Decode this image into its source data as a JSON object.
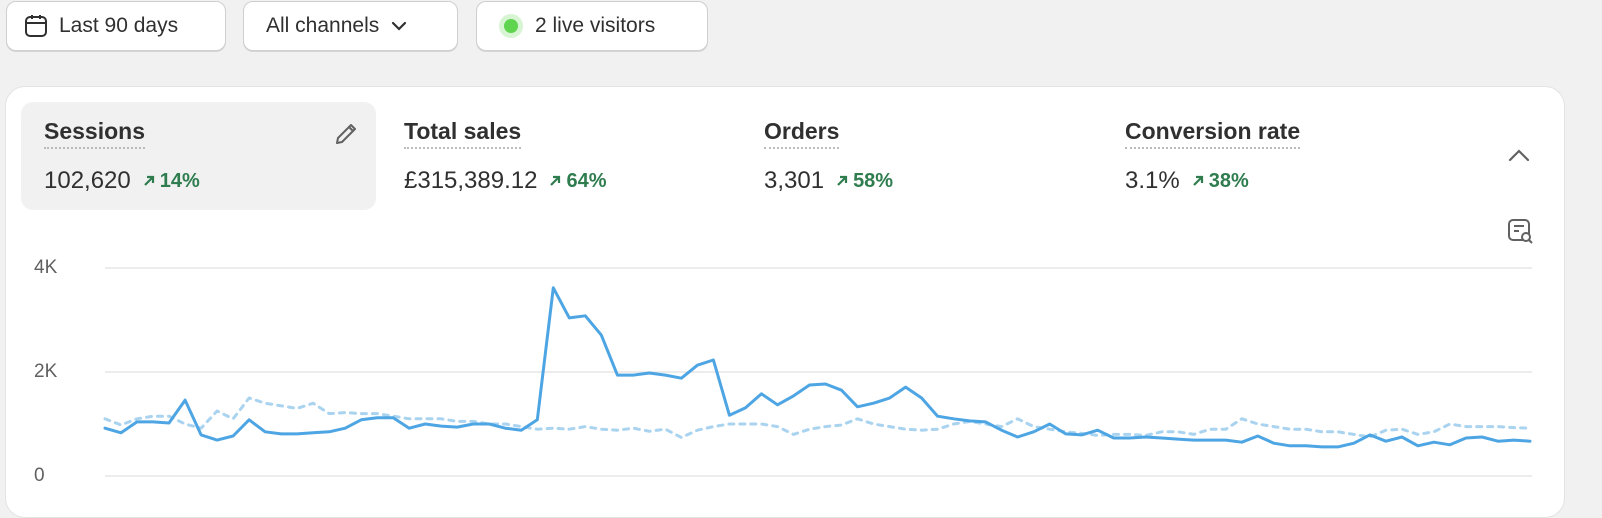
{
  "filters": [
    "Last 90 days",
    "All channels",
    "2 live visitors"
  ],
  "metrics": [
    {
      "label": "Sessions",
      "value": "102,620",
      "change": "14%"
    },
    {
      "label": "Total sales",
      "value": "£315,389.12",
      "change": "64%"
    },
    {
      "label": "Orders",
      "value": "3,301",
      "change": "58%"
    },
    {
      "label": "Conversion rate",
      "value": "3.1%",
      "change": "38%"
    }
  ],
  "chart_data": {
    "type": "line",
    "ylim": [
      0,
      4000
    ],
    "yticks": [
      {
        "value": 0,
        "label": "0"
      },
      {
        "value": 2000,
        "label": "2K"
      },
      {
        "value": 4000,
        "label": "4K"
      }
    ],
    "grid": true,
    "series": [
      {
        "color": "#4ea5e3",
        "dashed": false,
        "values": [
          920,
          830,
          1040,
          1040,
          1020,
          1460,
          790,
          690,
          770,
          1080,
          850,
          810,
          810,
          830,
          850,
          920,
          1080,
          1120,
          1120,
          920,
          1000,
          960,
          940,
          1000,
          1000,
          920,
          880,
          1080,
          3620,
          3040,
          3080,
          2710,
          1940,
          1940,
          1980,
          1940,
          1880,
          2130,
          2230,
          1170,
          1310,
          1580,
          1370,
          1540,
          1750,
          1770,
          1650,
          1330,
          1400,
          1500,
          1710,
          1500,
          1150,
          1100,
          1060,
          1040,
          880,
          750,
          850,
          1000,
          810,
          790,
          880,
          730,
          730,
          750,
          730,
          710,
          690,
          690,
          690,
          650,
          770,
          630,
          580,
          580,
          560,
          560,
          630,
          790,
          670,
          750,
          580,
          650,
          600,
          730,
          750,
          670,
          690,
          670
        ]
      },
      {
        "color": "#a9d3ef",
        "dashed": true,
        "values": [
          1100,
          980,
          1100,
          1150,
          1150,
          1000,
          920,
          1250,
          1100,
          1500,
          1400,
          1350,
          1300,
          1400,
          1200,
          1220,
          1200,
          1200,
          1150,
          1100,
          1100,
          1100,
          1050,
          1050,
          1000,
          1000,
          950,
          900,
          920,
          900,
          950,
          900,
          880,
          920,
          860,
          900,
          740,
          880,
          950,
          1000,
          1000,
          1000,
          950,
          800,
          900,
          950,
          980,
          1100,
          1000,
          950,
          900,
          880,
          900,
          1000,
          1050,
          1000,
          950,
          1100,
          950,
          900,
          850,
          820,
          780,
          800,
          800,
          780,
          850,
          850,
          800,
          900,
          900,
          1100,
          1000,
          950,
          900,
          900,
          850,
          850,
          800,
          750,
          880,
          900,
          800,
          850,
          1000,
          950,
          950,
          950,
          930,
          920
        ]
      }
    ]
  }
}
